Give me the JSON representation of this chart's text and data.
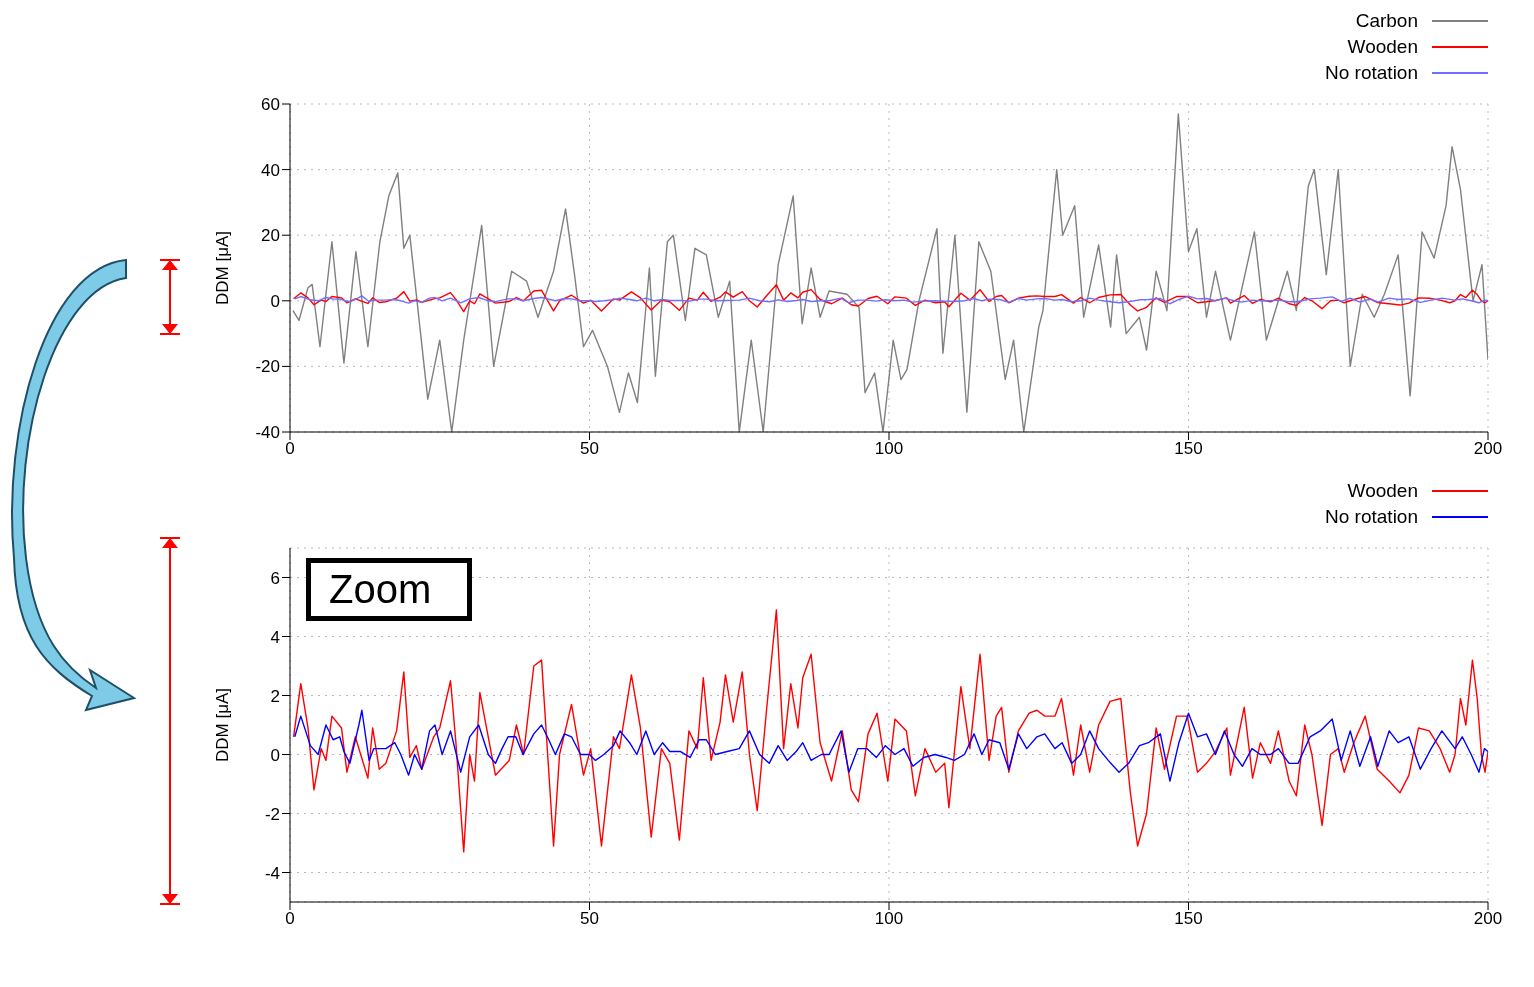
{
  "chart_data": [
    {
      "type": "line",
      "ylabel": "DDM [μA]",
      "xlim": [
        0,
        200
      ],
      "xticks": [
        0,
        50,
        100,
        150,
        200
      ],
      "ylim": [
        -40,
        60
      ],
      "yticks": [
        -40,
        -20,
        0,
        20,
        40,
        60
      ],
      "grid": true,
      "legend": "top right",
      "series": [
        {
          "name": "Carbon",
          "color": "#808080",
          "x": [
            0.5,
            1.5,
            3,
            3.7,
            5,
            7,
            9,
            11,
            13,
            15,
            16.5,
            18,
            19,
            20,
            23,
            25,
            27,
            29,
            32,
            34,
            37,
            39.5,
            41.4,
            44,
            46,
            47.5,
            49,
            50.5,
            53,
            55,
            56.5,
            58,
            60,
            61,
            63,
            64,
            66,
            67.6,
            69.5,
            71.5,
            73.4,
            75,
            77,
            79,
            81.5,
            84,
            85.5,
            87,
            88.5,
            90,
            93,
            95,
            96,
            97.6,
            99,
            100.7,
            102,
            103,
            105,
            108,
            109,
            111,
            113,
            115,
            117,
            119.4,
            120.8,
            122.5,
            125,
            125.7,
            128,
            129,
            131,
            132.5,
            135,
            137,
            138,
            139.6,
            141.8,
            143,
            144.6,
            146.4,
            148.3,
            150,
            151.4,
            153,
            154.5,
            157,
            161,
            163,
            166.5,
            168,
            170,
            171,
            173,
            175,
            177,
            179,
            181,
            182.7,
            185,
            187,
            189,
            191,
            193,
            194,
            195.4,
            197.5,
            199,
            200
          ],
          "values": [
            -3,
            -6,
            4,
            5,
            -14,
            18,
            -19,
            15,
            -14,
            18,
            32,
            39,
            16,
            20,
            -30,
            -12,
            -40,
            -12,
            23,
            -20,
            9,
            6,
            -5,
            9,
            28,
            8,
            -14,
            -9,
            -20,
            -34,
            -22,
            -31,
            10,
            -23,
            18,
            20,
            -6,
            16,
            14,
            -5,
            6,
            -40,
            -12,
            -40,
            11,
            32,
            -7,
            10,
            -5,
            3,
            2,
            -2,
            -28,
            -22,
            -40,
            -12,
            -24,
            -21,
            0,
            22,
            -16,
            20,
            -34,
            18,
            9,
            -24,
            -12,
            -40,
            -8,
            -3,
            40,
            20,
            29,
            -5,
            17,
            -8,
            14,
            -10,
            -5,
            -15,
            9,
            -3,
            57,
            15,
            22,
            -5,
            9,
            -12,
            21,
            -12,
            9,
            -3,
            35,
            40,
            8,
            40,
            -20,
            2,
            -5,
            2,
            14,
            -29,
            21,
            13,
            29,
            47,
            34,
            0,
            11,
            -18
          ]
        },
        {
          "name": "Wooden",
          "color": "#ff0000",
          "x": [
            0.6,
            1.8,
            3,
            4,
            5.2,
            6,
            7,
            8.6,
            9.5,
            10.9,
            13,
            13.8,
            14.9,
            16,
            17.8,
            19,
            20,
            21.1,
            22,
            24,
            25,
            26.8,
            27.7,
            29,
            30,
            30.8,
            31.7,
            34.3,
            36.6,
            37.8,
            39,
            40.7,
            42,
            44,
            45,
            47,
            49,
            50.2,
            52,
            54,
            55,
            57,
            58.5,
            60.3,
            62,
            63.4,
            65,
            66.6,
            68,
            69,
            70.3,
            71.8,
            72.7,
            74,
            75.5,
            76.7,
            78,
            79.6,
            81.2,
            82.4,
            83.6,
            84.8,
            85.6,
            87,
            88.5,
            90.4,
            92.2,
            93.7,
            94.9,
            96.5,
            98,
            99.8,
            101,
            102.9,
            104.4,
            106,
            107.8,
            109.3,
            110,
            112,
            113.5,
            115.2,
            116.7,
            117.9,
            118.8,
            120,
            121.6,
            123.4,
            124.7,
            126,
            127.7,
            128.8,
            130.8,
            132,
            133.5,
            135,
            136.9,
            138.7,
            140.3,
            141.5,
            143,
            144.6,
            146,
            148,
            149.8,
            151.5,
            153,
            154.5,
            156.4,
            157,
            159.3,
            160.7,
            162,
            163.7,
            165,
            166.8,
            168,
            169.4,
            170.6,
            172.3,
            173.7,
            175,
            176,
            177.6,
            179.5,
            181.5,
            183.5,
            185.3,
            186.8,
            188.4,
            190.2,
            192,
            193.6,
            194.5,
            195.4,
            196.3,
            197.4,
            198.2,
            198.9,
            199.5,
            200
          ],
          "values": [
            0.6,
            2.4,
            0.9,
            -1.2,
            0.2,
            -0.2,
            1.3,
            0.9,
            -0.6,
            0.6,
            -0.8,
            0.9,
            -0.5,
            -0.3,
            0.8,
            2.8,
            -0.1,
            0.3,
            -0.5,
            0.6,
            0.9,
            2.5,
            0.4,
            -3.3,
            0,
            -0.9,
            2.1,
            -0.7,
            -0.2,
            1,
            0,
            3,
            3.2,
            -3.1,
            0,
            1.7,
            -0.7,
            0.2,
            -3.1,
            0.6,
            0.2,
            2.7,
            0.9,
            -2.8,
            0.2,
            -0.3,
            -2.9,
            0.8,
            0.2,
            2.6,
            -0.2,
            1.1,
            2.7,
            1.1,
            2.8,
            0,
            -1.9,
            1.6,
            4.9,
            0.2,
            2.4,
            0.9,
            2.6,
            3.4,
            0.4,
            -0.9,
            0.8,
            -1.2,
            -1.6,
            0.7,
            1.4,
            -0.9,
            1.2,
            0.8,
            -1.4,
            0.2,
            -0.6,
            -0.3,
            -1.8,
            2.3,
            0.2,
            3.4,
            -0.2,
            1.3,
            1.6,
            -0.6,
            0.8,
            1.4,
            1.5,
            1.3,
            1.3,
            1.9,
            -0.7,
            1,
            -0.6,
            1,
            1.8,
            1.9,
            -1.3,
            -3.1,
            -2,
            0.9,
            -0.5,
            1.3,
            1.3,
            -0.6,
            -0.3,
            0.1,
            0.9,
            -0.7,
            1.6,
            -0.8,
            0.4,
            -0.3,
            0.8,
            -0.9,
            -1.4,
            1,
            0,
            -2.4,
            0,
            0.2,
            -0.6,
            0.4,
            1.3,
            -0.5,
            -0.9,
            -1.3,
            -0.7,
            0.9,
            0.8,
            0.2,
            -0.6,
            0,
            1.9,
            1,
            3.2,
            1.9,
            0,
            -0.6,
            0.1
          ]
        },
        {
          "name": "No rotation",
          "color": "#6f6fff",
          "x": [
            0.8,
            1.8,
            3.4,
            4.7,
            6,
            7.2,
            8.3,
            9,
            10,
            11.5,
            12,
            13.2,
            14,
            16,
            17.5,
            18.5,
            19.8,
            20.8,
            22,
            23.3,
            24.2,
            25.4,
            26.8,
            28.5,
            30,
            31.5,
            33.1,
            34.3,
            35.4,
            36.4,
            37.7,
            38.9,
            40.7,
            42,
            43.2,
            44.3,
            45.8,
            47,
            48.5,
            50,
            51,
            52.4,
            54,
            55.1,
            56.7,
            57.9,
            59.4,
            60.8,
            62.2,
            63.4,
            65.2,
            66.8,
            68.3,
            69.5,
            71,
            73,
            75,
            76.7,
            78.4,
            80,
            81.5,
            83,
            84.5,
            85.6,
            87,
            88.7,
            90,
            92,
            93.3,
            94.8,
            96.3,
            97.9,
            99.4,
            101,
            102.5,
            104,
            105.8,
            107.7,
            109.5,
            110.9,
            112.6,
            114.2,
            115.5,
            116.7,
            118.5,
            120,
            121.6,
            123,
            124.7,
            126,
            127.7,
            128.9,
            130.5,
            132,
            133.5,
            135,
            136.6,
            138.4,
            140,
            141.8,
            143.3,
            145.3,
            146.9,
            148.4,
            150,
            151.5,
            153,
            154.5,
            156,
            157.6,
            159,
            160.6,
            162,
            163.7,
            165,
            166.8,
            168.3,
            170.3,
            172,
            174,
            175.5,
            177,
            178.6,
            180.4,
            181.6,
            183.5,
            185,
            186.8,
            188.7,
            190.5,
            192.3,
            194.5,
            195.7,
            197.2,
            198.5,
            199.4,
            200
          ],
          "values": [
            0.6,
            1.3,
            0.3,
            0,
            1,
            0.5,
            0.6,
            0.1,
            -0.3,
            1,
            1.5,
            -0.2,
            0.2,
            0.2,
            0.4,
            0,
            -0.7,
            0,
            -0.5,
            0.8,
            1,
            0,
            0.8,
            -0.6,
            0.6,
            1,
            0,
            -0.3,
            0.2,
            0.6,
            0.6,
            0,
            0.7,
            1,
            0.5,
            0,
            0.7,
            0.6,
            0,
            0,
            -0.2,
            0,
            0.3,
            0.8,
            0.4,
            0,
            0.8,
            0,
            0.4,
            0.1,
            0.1,
            -0.1,
            0.5,
            0.5,
            0,
            0.1,
            0.2,
            0.8,
            0,
            -0.3,
            0.3,
            -0.2,
            0.1,
            0.4,
            -0.2,
            0,
            0,
            0.8,
            -0.6,
            0.2,
            0.2,
            -0.1,
            0.3,
            0,
            0.2,
            -0.4,
            -0.1,
            0,
            -0.1,
            -0.2,
            0,
            0.7,
            0,
            0.5,
            0.4,
            -0.5,
            0.7,
            0.2,
            0.6,
            0.7,
            0.2,
            0.4,
            -0.3,
            0,
            0.8,
            0.2,
            -0.2,
            -0.6,
            -0.3,
            0.3,
            0.4,
            0.7,
            -0.9,
            0.4,
            1.4,
            0.6,
            0.7,
            0,
            0.8,
            0,
            -0.4,
            0.2,
            0,
            0,
            0.2,
            -0.3,
            -0.3,
            0.6,
            0.8,
            1.2,
            -0.2,
            0.8,
            -0.4,
            0.6,
            -0.4,
            0.8,
            0.4,
            0.6,
            -0.5,
            0.2,
            0.8,
            0.2,
            0.6,
            0,
            -0.6,
            0.2,
            0.1
          ]
        }
      ]
    },
    {
      "type": "line",
      "ylabel": "DDM [μA]",
      "xlim": [
        0,
        200
      ],
      "xticks": [
        0,
        50,
        100,
        150,
        200
      ],
      "ylim": [
        -5,
        7
      ],
      "yticks": [
        -4,
        -2,
        0,
        2,
        4,
        6
      ],
      "grid": true,
      "legend": "top right",
      "annotations": [
        "Zoom"
      ],
      "series": [
        {
          "name": "Wooden",
          "color": "#ff0000",
          "x": [
            0.6,
            1.8,
            3,
            4,
            5.2,
            6,
            7,
            8.6,
            9.5,
            10.9,
            13,
            13.8,
            14.9,
            16,
            17.8,
            19,
            20,
            21.1,
            22,
            24,
            25,
            26.8,
            27.7,
            29,
            30,
            30.8,
            31.7,
            34.3,
            36.6,
            37.8,
            39,
            40.7,
            42,
            44,
            45,
            47,
            49,
            50.2,
            52,
            54,
            55,
            57,
            58.5,
            60.3,
            62,
            63.4,
            65,
            66.6,
            68,
            69,
            70.3,
            71.8,
            72.7,
            74,
            75.5,
            76.7,
            78,
            79.6,
            81.2,
            82.4,
            83.6,
            84.8,
            85.6,
            87,
            88.5,
            90.4,
            92.2,
            93.7,
            94.9,
            96.5,
            98,
            99.8,
            101,
            102.9,
            104.4,
            106,
            107.8,
            109.3,
            110,
            112,
            113.5,
            115.2,
            116.7,
            117.9,
            118.8,
            120,
            121.6,
            123.4,
            124.7,
            126,
            127.7,
            128.8,
            130.8,
            132,
            133.5,
            135,
            136.9,
            138.7,
            140.3,
            141.5,
            143,
            144.6,
            146,
            148,
            149.8,
            151.5,
            153,
            154.5,
            156.4,
            157,
            159.3,
            160.7,
            162,
            163.7,
            165,
            166.8,
            168,
            169.4,
            170.6,
            172.3,
            173.7,
            175,
            176,
            177.6,
            179.5,
            181.5,
            183.5,
            185.3,
            186.8,
            188.4,
            190.2,
            192,
            193.6,
            194.5,
            195.4,
            196.3,
            197.4,
            198.2,
            198.9,
            199.5,
            200
          ],
          "values": [
            0.6,
            2.4,
            0.9,
            -1.2,
            0.2,
            -0.2,
            1.3,
            0.9,
            -0.6,
            0.6,
            -0.8,
            0.9,
            -0.5,
            -0.3,
            0.8,
            2.8,
            -0.1,
            0.3,
            -0.5,
            0.6,
            0.9,
            2.5,
            0.4,
            -3.3,
            0,
            -0.9,
            2.1,
            -0.7,
            -0.2,
            1,
            0,
            3,
            3.2,
            -3.1,
            0,
            1.7,
            -0.7,
            0.2,
            -3.1,
            0.6,
            0.2,
            2.7,
            0.9,
            -2.8,
            0.2,
            -0.3,
            -2.9,
            0.8,
            0.2,
            2.6,
            -0.2,
            1.1,
            2.7,
            1.1,
            2.8,
            0,
            -1.9,
            1.6,
            4.9,
            0.2,
            2.4,
            0.9,
            2.6,
            3.4,
            0.4,
            -0.9,
            0.8,
            -1.2,
            -1.6,
            0.7,
            1.4,
            -0.9,
            1.2,
            0.8,
            -1.4,
            0.2,
            -0.6,
            -0.3,
            -1.8,
            2.3,
            0.2,
            3.4,
            -0.2,
            1.3,
            1.6,
            -0.6,
            0.8,
            1.4,
            1.5,
            1.3,
            1.3,
            1.9,
            -0.7,
            1,
            -0.6,
            1,
            1.8,
            1.9,
            -1.3,
            -3.1,
            -2,
            0.9,
            -0.5,
            1.3,
            1.3,
            -0.6,
            -0.3,
            0.1,
            0.9,
            -0.7,
            1.6,
            -0.8,
            0.4,
            -0.3,
            0.8,
            -0.9,
            -1.4,
            1,
            0,
            -2.4,
            0,
            0.2,
            -0.6,
            0.4,
            1.3,
            -0.5,
            -0.9,
            -1.3,
            -0.7,
            0.9,
            0.8,
            0.2,
            -0.6,
            0,
            1.9,
            1,
            3.2,
            1.9,
            0,
            -0.6,
            0.1
          ]
        },
        {
          "name": "No rotation",
          "color": "#0000ff",
          "x": [
            0.8,
            1.8,
            3.4,
            4.7,
            6,
            7.2,
            8.3,
            9,
            10,
            11.5,
            12,
            13.2,
            14,
            16,
            17.5,
            18.5,
            19.8,
            20.8,
            22,
            23.3,
            24.2,
            25.4,
            26.8,
            28.5,
            30,
            31.5,
            33.1,
            34.3,
            35.4,
            36.4,
            37.7,
            38.9,
            40.7,
            42,
            43.2,
            44.3,
            45.8,
            47,
            48.5,
            50,
            51,
            52.4,
            54,
            55.1,
            56.7,
            57.9,
            59.4,
            60.8,
            62.2,
            63.4,
            65.2,
            66.8,
            68.3,
            69.5,
            71,
            73,
            75,
            76.7,
            78.4,
            80,
            81.5,
            83,
            84.5,
            85.6,
            87,
            88.7,
            90,
            92,
            93.3,
            94.8,
            96.3,
            97.9,
            99.4,
            101,
            102.5,
            104,
            105.8,
            107.7,
            109.5,
            110.9,
            112.6,
            114.2,
            115.5,
            116.7,
            118.5,
            120,
            121.6,
            123,
            124.7,
            126,
            127.7,
            128.9,
            130.5,
            132,
            133.5,
            135,
            136.6,
            138.4,
            140,
            141.8,
            143.3,
            145.3,
            146.9,
            148.4,
            150,
            151.5,
            153,
            154.5,
            156,
            157.6,
            159,
            160.6,
            162,
            163.7,
            165,
            166.8,
            168.3,
            170.3,
            172,
            174,
            175.5,
            177,
            178.6,
            180.4,
            181.6,
            183.5,
            185,
            186.8,
            188.7,
            190.5,
            192.3,
            194.5,
            195.7,
            197.2,
            198.5,
            199.4,
            200
          ],
          "values": [
            0.6,
            1.3,
            0.3,
            0,
            1,
            0.5,
            0.6,
            0.1,
            -0.3,
            1,
            1.5,
            -0.2,
            0.2,
            0.2,
            0.4,
            0,
            -0.7,
            0,
            -0.5,
            0.8,
            1,
            0,
            0.8,
            -0.6,
            0.6,
            1,
            0,
            -0.3,
            0.2,
            0.6,
            0.6,
            0,
            0.7,
            1,
            0.5,
            0,
            0.7,
            0.6,
            0,
            0,
            -0.2,
            0,
            0.3,
            0.8,
            0.4,
            0,
            0.8,
            0,
            0.4,
            0.1,
            0.1,
            -0.1,
            0.5,
            0.5,
            0,
            0.1,
            0.2,
            0.8,
            0,
            -0.3,
            0.3,
            -0.2,
            0.1,
            0.4,
            -0.2,
            0,
            0,
            0.8,
            -0.6,
            0.2,
            0.2,
            -0.1,
            0.3,
            0,
            0.2,
            -0.4,
            -0.1,
            0,
            -0.1,
            -0.2,
            0,
            0.7,
            0,
            0.5,
            0.4,
            -0.5,
            0.7,
            0.2,
            0.6,
            0.7,
            0.2,
            0.4,
            -0.3,
            0,
            0.8,
            0.2,
            -0.2,
            -0.6,
            -0.3,
            0.3,
            0.4,
            0.7,
            -0.9,
            0.4,
            1.4,
            0.6,
            0.7,
            0,
            0.8,
            0,
            -0.4,
            0.2,
            0,
            0,
            0.2,
            -0.3,
            -0.3,
            0.6,
            0.8,
            1.2,
            -0.2,
            0.8,
            -0.4,
            0.6,
            -0.4,
            0.8,
            0.4,
            0.6,
            -0.5,
            0.2,
            0.8,
            0.2,
            0.6,
            0,
            -0.6,
            0.2,
            0.1
          ]
        }
      ]
    }
  ]
}
